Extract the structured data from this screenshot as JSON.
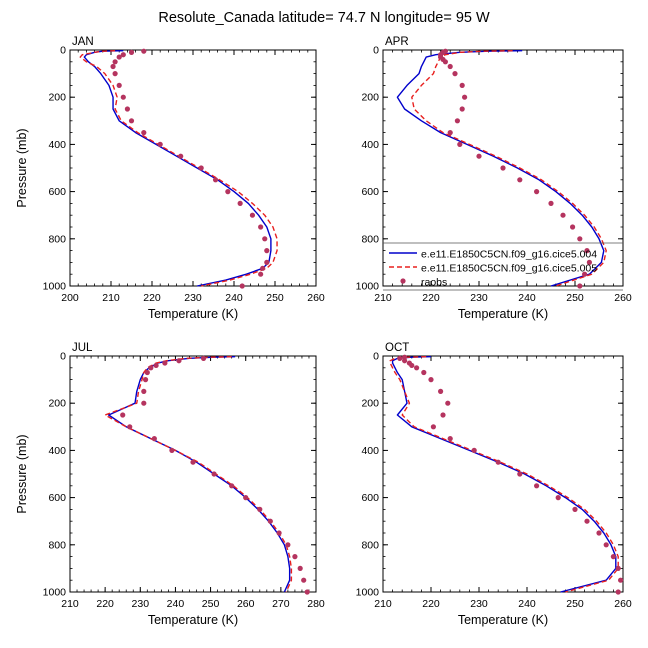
{
  "figure": {
    "title": "Resolute_Canada  latitude= 74.7 N longitude= 95 W"
  },
  "colors": {
    "series1": "#0000cc",
    "series2": "#e8201f",
    "raobs": "#b5345f",
    "axis": "#000000"
  },
  "legend": {
    "placement": "inside bottom of APR panel",
    "entries": [
      "e.e11.E1850C5CN.f09_g16.cice5.004",
      "e.e11.E1850C5CN.f09_g16.cice5.005",
      "raobs"
    ]
  },
  "chart_data": [
    {
      "type": "line",
      "panel": "JAN",
      "xlabel": "Temperature (K)",
      "ylabel": "Pressure (mb)",
      "xlim": [
        200,
        260
      ],
      "ylim": [
        1000,
        0
      ],
      "x_ticks": [
        200,
        210,
        220,
        230,
        240,
        250,
        260
      ],
      "x_tick_labels": [
        "200",
        "210",
        "220",
        "230",
        "240",
        "250",
        "260"
      ],
      "y_ticks": [
        0,
        200,
        400,
        600,
        800,
        1000
      ],
      "y_tick_labels": [
        "0",
        "200",
        "400",
        "600",
        "800",
        "1000"
      ],
      "series": [
        {
          "pressure": [
            3,
            5,
            10,
            20,
            30,
            50,
            70,
            100,
            150,
            200,
            250,
            300,
            350,
            400,
            450,
            500,
            550,
            600,
            650,
            700,
            750,
            800,
            850,
            900,
            925,
            950,
            975,
            1000
          ],
          "temperature": [
            213,
            208,
            206,
            204,
            203.5,
            204.5,
            206,
            207.5,
            209.5,
            210.5,
            210.5,
            212,
            216,
            221,
            226,
            231,
            236,
            240,
            243.5,
            246,
            248,
            249,
            249,
            248.5,
            247,
            243,
            238,
            231
          ]
        },
        {
          "pressure": [
            3,
            5,
            10,
            20,
            30,
            50,
            70,
            100,
            150,
            200,
            250,
            300,
            350,
            400,
            450,
            500,
            550,
            600,
            650,
            700,
            750,
            800,
            850,
            900,
            925,
            950,
            975,
            1000
          ],
          "temperature": [
            211,
            208,
            206,
            203,
            202.5,
            204,
            206.5,
            208.5,
            210.5,
            211.5,
            211,
            212.5,
            216.5,
            221.5,
            226.5,
            231.5,
            236.5,
            241,
            244.5,
            247.5,
            249.5,
            250.5,
            250.5,
            249.5,
            248,
            244,
            239,
            232
          ]
        },
        {
          "pressure": [
            5,
            10,
            20,
            30,
            50,
            70,
            100,
            150,
            200,
            250,
            300,
            350,
            400,
            450,
            500,
            550,
            600,
            650,
            700,
            750,
            800,
            850,
            900,
            925,
            950,
            1000
          ],
          "temperature": [
            218,
            215,
            213,
            212,
            211,
            210.5,
            211,
            212,
            213,
            214,
            215,
            218,
            222,
            227,
            232,
            235.5,
            238.5,
            241.5,
            244.5,
            246.5,
            247.5,
            248,
            248,
            247,
            246.5,
            242
          ]
        }
      ]
    },
    {
      "type": "line",
      "panel": "APR",
      "xlabel": "Temperature (K)",
      "ylabel": "",
      "xlim": [
        210,
        260
      ],
      "ylim": [
        1000,
        0
      ],
      "x_ticks": [
        210,
        220,
        230,
        240,
        250,
        260
      ],
      "x_tick_labels": [
        "210",
        "220",
        "230",
        "240",
        "250",
        "260"
      ],
      "y_ticks": [
        0,
        200,
        400,
        600,
        800,
        1000
      ],
      "y_tick_labels": [
        "0",
        "200",
        "400",
        "600",
        "800",
        "1000"
      ],
      "series": [
        {
          "pressure": [
            3,
            5,
            10,
            20,
            30,
            50,
            70,
            100,
            150,
            200,
            250,
            300,
            350,
            400,
            450,
            500,
            550,
            600,
            650,
            700,
            750,
            800,
            850,
            900,
            950,
            1000
          ],
          "temperature": [
            239,
            232,
            226,
            221,
            219,
            218.5,
            218,
            217.5,
            215,
            213,
            214.5,
            218,
            222,
            227.5,
            233,
            238,
            242.5,
            246,
            249,
            251.5,
            253.5,
            255,
            256,
            255.5,
            253,
            245
          ]
        },
        {
          "pressure": [
            3,
            5,
            10,
            20,
            30,
            50,
            70,
            100,
            150,
            200,
            250,
            300,
            350,
            400,
            450,
            500,
            550,
            600,
            650,
            700,
            750,
            800,
            850,
            900,
            950,
            1000
          ],
          "temperature": [
            237,
            231,
            226,
            223,
            222,
            221.5,
            221,
            220.5,
            218,
            216,
            216.5,
            219,
            222.5,
            228,
            233.5,
            238.5,
            243,
            246.5,
            249.5,
            252,
            254,
            255.5,
            256.5,
            256,
            253.5,
            246
          ]
        },
        {
          "pressure": [
            5,
            10,
            20,
            30,
            40,
            50,
            70,
            100,
            150,
            200,
            250,
            300,
            350,
            400,
            450,
            500,
            550,
            600,
            650,
            700,
            750,
            800,
            850,
            900,
            950,
            1000
          ],
          "temperature": [
            223,
            222.5,
            222,
            222,
            222.5,
            223,
            224,
            225,
            226.5,
            227,
            226.5,
            225.5,
            224,
            226,
            230,
            235,
            238.5,
            242,
            245,
            247.5,
            249.5,
            251,
            252.5,
            253,
            252,
            251
          ]
        }
      ]
    },
    {
      "type": "line",
      "panel": "JUL",
      "xlabel": "Temperature (K)",
      "ylabel": "Pressure (mb)",
      "xlim": [
        210,
        280
      ],
      "ylim": [
        1000,
        0
      ],
      "x_ticks": [
        210,
        220,
        230,
        240,
        250,
        260,
        270,
        280
      ],
      "x_tick_labels": [
        "210",
        "220",
        "230",
        "240",
        "250",
        "260",
        "270",
        "280"
      ],
      "y_ticks": [
        0,
        200,
        400,
        600,
        800,
        1000
      ],
      "y_tick_labels": [
        "0",
        "200",
        "400",
        "600",
        "800",
        "1000"
      ],
      "series": [
        {
          "pressure": [
            3,
            5,
            10,
            20,
            30,
            50,
            70,
            100,
            150,
            200,
            250,
            300,
            350,
            400,
            450,
            500,
            550,
            600,
            650,
            700,
            750,
            800,
            850,
            900,
            950,
            1000
          ],
          "temperature": [
            257,
            251,
            244,
            238,
            235,
            232.5,
            231,
            230,
            229,
            228.5,
            221,
            226,
            233,
            240,
            246,
            251,
            256,
            260,
            263.5,
            266.5,
            269,
            271,
            272,
            272.5,
            272.5,
            271
          ]
        },
        {
          "pressure": [
            3,
            5,
            10,
            20,
            30,
            50,
            70,
            100,
            150,
            200,
            250,
            300,
            350,
            400,
            450,
            500,
            550,
            600,
            650,
            700,
            750,
            800,
            850,
            900,
            950,
            1000
          ],
          "temperature": [
            256,
            250,
            243,
            237.5,
            234.5,
            232,
            231,
            230.5,
            229.5,
            229,
            220,
            226,
            233,
            240,
            246.5,
            251.5,
            256.5,
            260.5,
            264,
            267,
            269.5,
            271.5,
            272.5,
            273,
            273,
            271.5
          ]
        },
        {
          "pressure": [
            10,
            20,
            30,
            40,
            50,
            70,
            100,
            150,
            200,
            250,
            300,
            350,
            400,
            450,
            500,
            550,
            600,
            650,
            700,
            750,
            800,
            850,
            900,
            950,
            1000
          ],
          "temperature": [
            248,
            241,
            237,
            234.5,
            233,
            232,
            231.5,
            231,
            231,
            225,
            227,
            234,
            239,
            245,
            251,
            256,
            260,
            264,
            267,
            269.5,
            272,
            274,
            275.5,
            276.5,
            277.5
          ]
        }
      ]
    },
    {
      "type": "line",
      "panel": "OCT",
      "xlabel": "Temperature (K)",
      "ylabel": "",
      "xlim": [
        210,
        260
      ],
      "ylim": [
        1000,
        0
      ],
      "x_ticks": [
        210,
        220,
        230,
        240,
        250,
        260
      ],
      "x_tick_labels": [
        "210",
        "220",
        "230",
        "240",
        "250",
        "260"
      ],
      "y_ticks": [
        0,
        200,
        400,
        600,
        800,
        1000
      ],
      "y_tick_labels": [
        "0",
        "200",
        "400",
        "600",
        "800",
        "1000"
      ],
      "series": [
        {
          "pressure": [
            3,
            5,
            10,
            20,
            30,
            50,
            70,
            100,
            150,
            200,
            250,
            300,
            350,
            400,
            450,
            500,
            550,
            600,
            650,
            700,
            750,
            800,
            850,
            900,
            950,
            1000
          ],
          "temperature": [
            220,
            216,
            213,
            212,
            212,
            212.5,
            213,
            214,
            214.5,
            215,
            213,
            216,
            222,
            228,
            234,
            239.5,
            244,
            248,
            251.5,
            254,
            256,
            257.5,
            258.5,
            258.5,
            256.5,
            247
          ]
        },
        {
          "pressure": [
            3,
            5,
            10,
            20,
            30,
            50,
            70,
            100,
            150,
            200,
            250,
            300,
            350,
            400,
            450,
            500,
            550,
            600,
            650,
            700,
            750,
            800,
            850,
            900,
            950,
            1000
          ],
          "temperature": [
            219,
            215,
            212.5,
            211.5,
            211.5,
            212,
            212.5,
            213.5,
            214.5,
            215.5,
            214,
            216.5,
            222.5,
            228.5,
            234.5,
            240,
            244.5,
            248.5,
            252,
            254.5,
            256.5,
            258,
            259,
            259,
            257,
            248
          ]
        },
        {
          "pressure": [
            5,
            10,
            20,
            30,
            40,
            50,
            70,
            100,
            150,
            200,
            250,
            300,
            350,
            400,
            450,
            500,
            550,
            600,
            650,
            700,
            750,
            800,
            850,
            900,
            950,
            1000
          ],
          "temperature": [
            214.5,
            213.5,
            214.5,
            215.5,
            216,
            217,
            218.5,
            220,
            222,
            223.5,
            222.5,
            220.5,
            224,
            229,
            234,
            238.5,
            242,
            246.5,
            250,
            252.5,
            255,
            256.5,
            258,
            259,
            259.5,
            259
          ]
        }
      ]
    }
  ]
}
